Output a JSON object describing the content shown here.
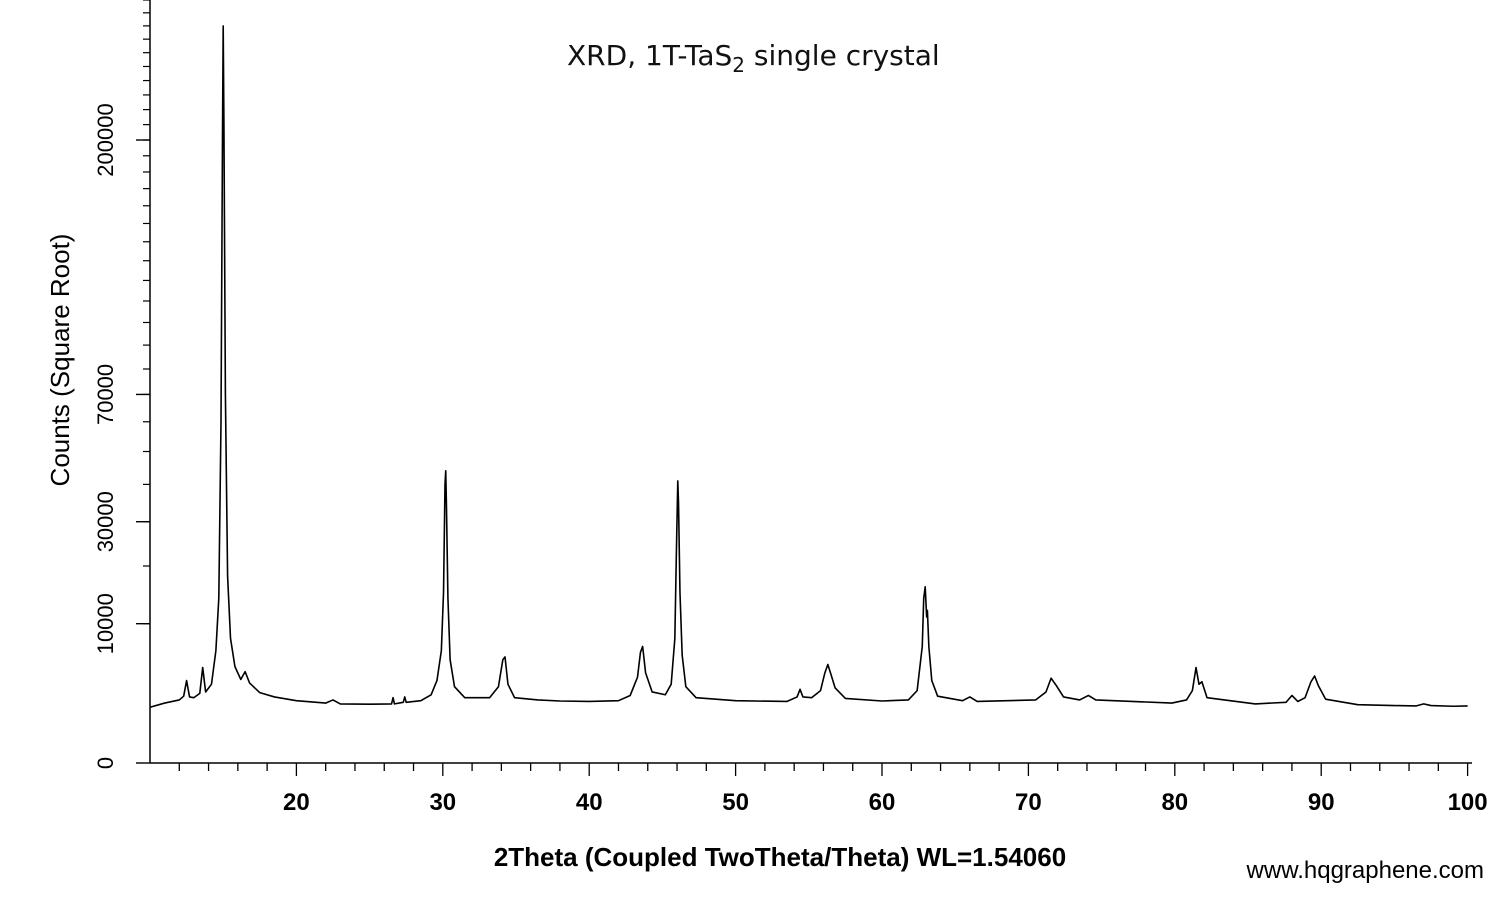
{
  "watermark": "www.hqgraphene.com",
  "chart_data": {
    "type": "line",
    "title_main": "XRD, 1T-TaS",
    "title_sub": "2",
    "title_rest": " single crystal",
    "xlabel": "2Theta (Coupled TwoTheta/Theta) WL=1.54060",
    "ylabel": "Counts (Square Root)",
    "xlim": [
      10,
      100.3
    ],
    "ylim": [
      0,
      300000
    ],
    "yscale": "sqrt",
    "x_ticks": [
      20,
      30,
      40,
      50,
      60,
      70,
      80,
      90,
      100
    ],
    "y_tick_labels": [
      {
        "value": 0,
        "label": "0"
      },
      {
        "value": 10000,
        "label": "10000"
      },
      {
        "value": 30000,
        "label": "30000"
      },
      {
        "value": 70000,
        "label": "70000"
      },
      {
        "value": 200000,
        "label": "200000"
      }
    ],
    "line_color": "#000000",
    "series": [
      {
        "points": [
          [
            10.0,
            1600
          ],
          [
            11.0,
            1850
          ],
          [
            12.0,
            2050
          ],
          [
            12.3,
            2300
          ],
          [
            12.5,
            3500
          ],
          [
            12.7,
            2250
          ],
          [
            13.0,
            2200
          ],
          [
            13.4,
            2500
          ],
          [
            13.6,
            4700
          ],
          [
            13.8,
            2600
          ],
          [
            14.2,
            3200
          ],
          [
            14.5,
            6500
          ],
          [
            14.7,
            14000
          ],
          [
            14.85,
            60000
          ],
          [
            14.95,
            200000
          ],
          [
            15.0,
            280000
          ],
          [
            15.05,
            210000
          ],
          [
            15.15,
            70000
          ],
          [
            15.3,
            18000
          ],
          [
            15.5,
            8000
          ],
          [
            15.8,
            4800
          ],
          [
            16.2,
            3600
          ],
          [
            16.5,
            4300
          ],
          [
            16.8,
            3300
          ],
          [
            17.5,
            2550
          ],
          [
            18.5,
            2250
          ],
          [
            20.0,
            2000
          ],
          [
            22.0,
            1850
          ],
          [
            22.5,
            2050
          ],
          [
            23.0,
            1800
          ],
          [
            25.0,
            1780
          ],
          [
            26.5,
            1800
          ],
          [
            26.6,
            2200
          ],
          [
            26.7,
            1800
          ],
          [
            27.3,
            1900
          ],
          [
            27.4,
            2250
          ],
          [
            27.5,
            1900
          ],
          [
            28.5,
            2000
          ],
          [
            29.2,
            2400
          ],
          [
            29.6,
            3500
          ],
          [
            29.9,
            6500
          ],
          [
            30.05,
            15000
          ],
          [
            30.15,
            40000
          ],
          [
            30.2,
            44000
          ],
          [
            30.25,
            34000
          ],
          [
            30.35,
            14000
          ],
          [
            30.5,
            5500
          ],
          [
            30.8,
            3000
          ],
          [
            31.5,
            2200
          ],
          [
            33.2,
            2200
          ],
          [
            33.8,
            3000
          ],
          [
            34.1,
            5500
          ],
          [
            34.25,
            5800
          ],
          [
            34.45,
            3200
          ],
          [
            34.9,
            2200
          ],
          [
            36.5,
            2050
          ],
          [
            38.0,
            1980
          ],
          [
            40.0,
            1950
          ],
          [
            42.0,
            2000
          ],
          [
            42.8,
            2350
          ],
          [
            43.3,
            3800
          ],
          [
            43.5,
            6300
          ],
          [
            43.65,
            7000
          ],
          [
            43.85,
            4200
          ],
          [
            44.3,
            2600
          ],
          [
            45.2,
            2400
          ],
          [
            45.6,
            3200
          ],
          [
            45.85,
            8000
          ],
          [
            45.95,
            22000
          ],
          [
            46.05,
            41000
          ],
          [
            46.1,
            35000
          ],
          [
            46.2,
            15000
          ],
          [
            46.35,
            6000
          ],
          [
            46.6,
            3000
          ],
          [
            47.3,
            2200
          ],
          [
            50.0,
            2000
          ],
          [
            53.5,
            1950
          ],
          [
            54.2,
            2250
          ],
          [
            54.4,
            2800
          ],
          [
            54.6,
            2250
          ],
          [
            55.2,
            2200
          ],
          [
            55.8,
            2700
          ],
          [
            56.1,
            4200
          ],
          [
            56.3,
            5000
          ],
          [
            56.5,
            4100
          ],
          [
            56.8,
            2900
          ],
          [
            57.5,
            2150
          ],
          [
            60.0,
            1980
          ],
          [
            61.8,
            2050
          ],
          [
            62.4,
            2700
          ],
          [
            62.75,
            7000
          ],
          [
            62.85,
            14000
          ],
          [
            62.95,
            16000
          ],
          [
            63.05,
            11000
          ],
          [
            63.1,
            12000
          ],
          [
            63.2,
            7000
          ],
          [
            63.4,
            3500
          ],
          [
            63.8,
            2300
          ],
          [
            65.5,
            2000
          ],
          [
            66.0,
            2250
          ],
          [
            66.5,
            1950
          ],
          [
            70.5,
            2050
          ],
          [
            71.2,
            2600
          ],
          [
            71.55,
            3700
          ],
          [
            71.9,
            3100
          ],
          [
            72.4,
            2250
          ],
          [
            73.5,
            2050
          ],
          [
            74.1,
            2350
          ],
          [
            74.6,
            2050
          ],
          [
            79.8,
            1850
          ],
          [
            80.8,
            2050
          ],
          [
            81.2,
            2700
          ],
          [
            81.45,
            4700
          ],
          [
            81.65,
            3200
          ],
          [
            81.85,
            3400
          ],
          [
            82.2,
            2200
          ],
          [
            85.5,
            1800
          ],
          [
            87.6,
            1900
          ],
          [
            88.0,
            2350
          ],
          [
            88.4,
            1950
          ],
          [
            88.9,
            2200
          ],
          [
            89.3,
            3400
          ],
          [
            89.55,
            3900
          ],
          [
            89.8,
            3100
          ],
          [
            90.3,
            2100
          ],
          [
            92.5,
            1750
          ],
          [
            95.0,
            1700
          ],
          [
            96.5,
            1680
          ],
          [
            97.0,
            1800
          ],
          [
            97.5,
            1700
          ],
          [
            99.0,
            1660
          ],
          [
            100.0,
            1680
          ]
        ]
      }
    ]
  }
}
